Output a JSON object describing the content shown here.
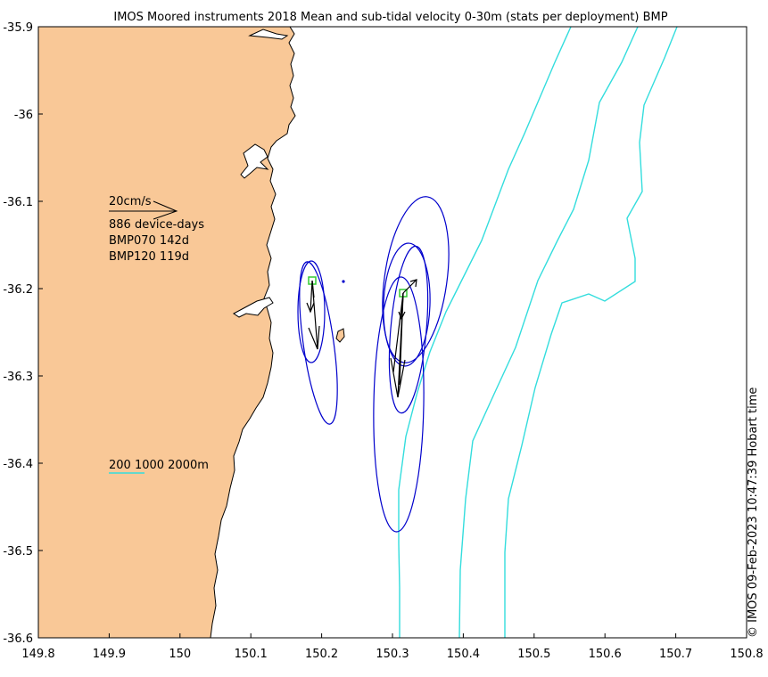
{
  "title": "IMOS Moored instruments 2018 Mean and sub-tidal velocity 0-30m (stats per deployment) BMP",
  "timestamp": "© IMOS 09-Feb-2023 10:47:39 Hobart time",
  "axes": {
    "x_ticks": [
      "149.8",
      "149.9",
      "150",
      "150.1",
      "150.2",
      "150.3",
      "150.4",
      "150.5",
      "150.6",
      "150.7",
      "150.8"
    ],
    "y_ticks": [
      "-35.9",
      "-36",
      "-36.1",
      "-36.2",
      "-36.3",
      "-36.4",
      "-36.5",
      "-36.6"
    ],
    "xlim": [
      149.8,
      150.8
    ],
    "ylim": [
      -36.6,
      -35.9
    ]
  },
  "legend": {
    "scale_label": "20cm/s",
    "device_days": "886 device-days",
    "stations": [
      "BMP070 142d",
      "BMP120 119d"
    ],
    "isobaths_label": "200 1000 2000m"
  },
  "colors": {
    "land": "#f9c897",
    "ellipse": "#0000cc",
    "isobath": "#33dddd",
    "station_marker": "#33cc33",
    "arrow": "#000000"
  },
  "chart_data": {
    "type": "map",
    "projection": "lon-lat",
    "stations": [
      {
        "name": "BMP070",
        "days": 142,
        "lon": 150.189,
        "lat": -36.192,
        "mean_vectors_m_s": [
          {
            "u": -0.01,
            "v": -0.17
          },
          {
            "u": 0.005,
            "v": -0.09
          },
          {
            "u": -0.005,
            "v": -0.25
          }
        ],
        "variance_ellipses": [
          {
            "clon": 150.187,
            "clat": -36.24,
            "a_deg": 0.07,
            "b_deg": 0.018,
            "angle": -88
          },
          {
            "clon": 150.199,
            "clat": -36.26,
            "a_deg": 0.1,
            "b_deg": 0.02,
            "angle": -80
          }
        ]
      },
      {
        "name": "BMP120",
        "days": 119,
        "lon": 150.314,
        "lat": -36.207,
        "mean_vectors_m_s": [
          {
            "u": 0.02,
            "v": 0.07
          },
          {
            "u": 0.01,
            "v": -0.06
          },
          {
            "u": -0.01,
            "v": -0.25
          },
          {
            "u": 0.0,
            "v": -0.2
          },
          {
            "u": 0.01,
            "v": -0.21
          }
        ],
        "variance_ellipses": [
          {
            "clon": 150.329,
            "clat": -36.185,
            "a_deg": 0.095,
            "b_deg": 0.043,
            "angle": -82
          },
          {
            "clon": 150.318,
            "clat": -36.215,
            "a_deg": 0.065,
            "b_deg": 0.032,
            "angle": -88
          },
          {
            "clon": 150.323,
            "clat": -36.26,
            "a_deg": 0.09,
            "b_deg": 0.024,
            "angle": -84
          },
          {
            "clon": 150.318,
            "clat": -36.315,
            "a_deg": 0.17,
            "b_deg": 0.035,
            "angle": -89
          }
        ]
      }
    ],
    "extra_point": {
      "lon": 150.235,
      "lat": -36.193
    },
    "isobaths_m": [
      200,
      1000,
      2000
    ]
  }
}
